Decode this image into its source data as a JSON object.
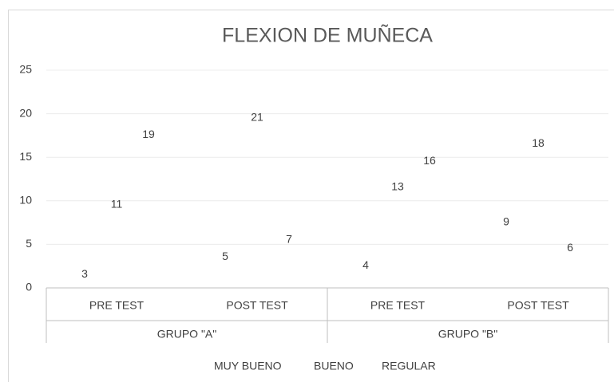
{
  "chart_data": {
    "type": "bar",
    "title": "FLEXION DE MUÑECA",
    "categories": [
      "PRE TEST",
      "POST TEST",
      "PRE TEST",
      "POST TEST"
    ],
    "groups": [
      "GRUPO \"A\"",
      "GRUPO \"B\""
    ],
    "series": [
      {
        "name": "MUY BUENO",
        "values": [
          3,
          5,
          4,
          9
        ]
      },
      {
        "name": "BUENO",
        "values": [
          11,
          21,
          13,
          18
        ]
      },
      {
        "name": "REGULAR",
        "values": [
          19,
          7,
          16,
          6
        ]
      }
    ],
    "ylim": [
      0,
      25
    ],
    "yticks": [
      0,
      5,
      10,
      15,
      20,
      25
    ],
    "grid": true,
    "legend": "bottom"
  }
}
